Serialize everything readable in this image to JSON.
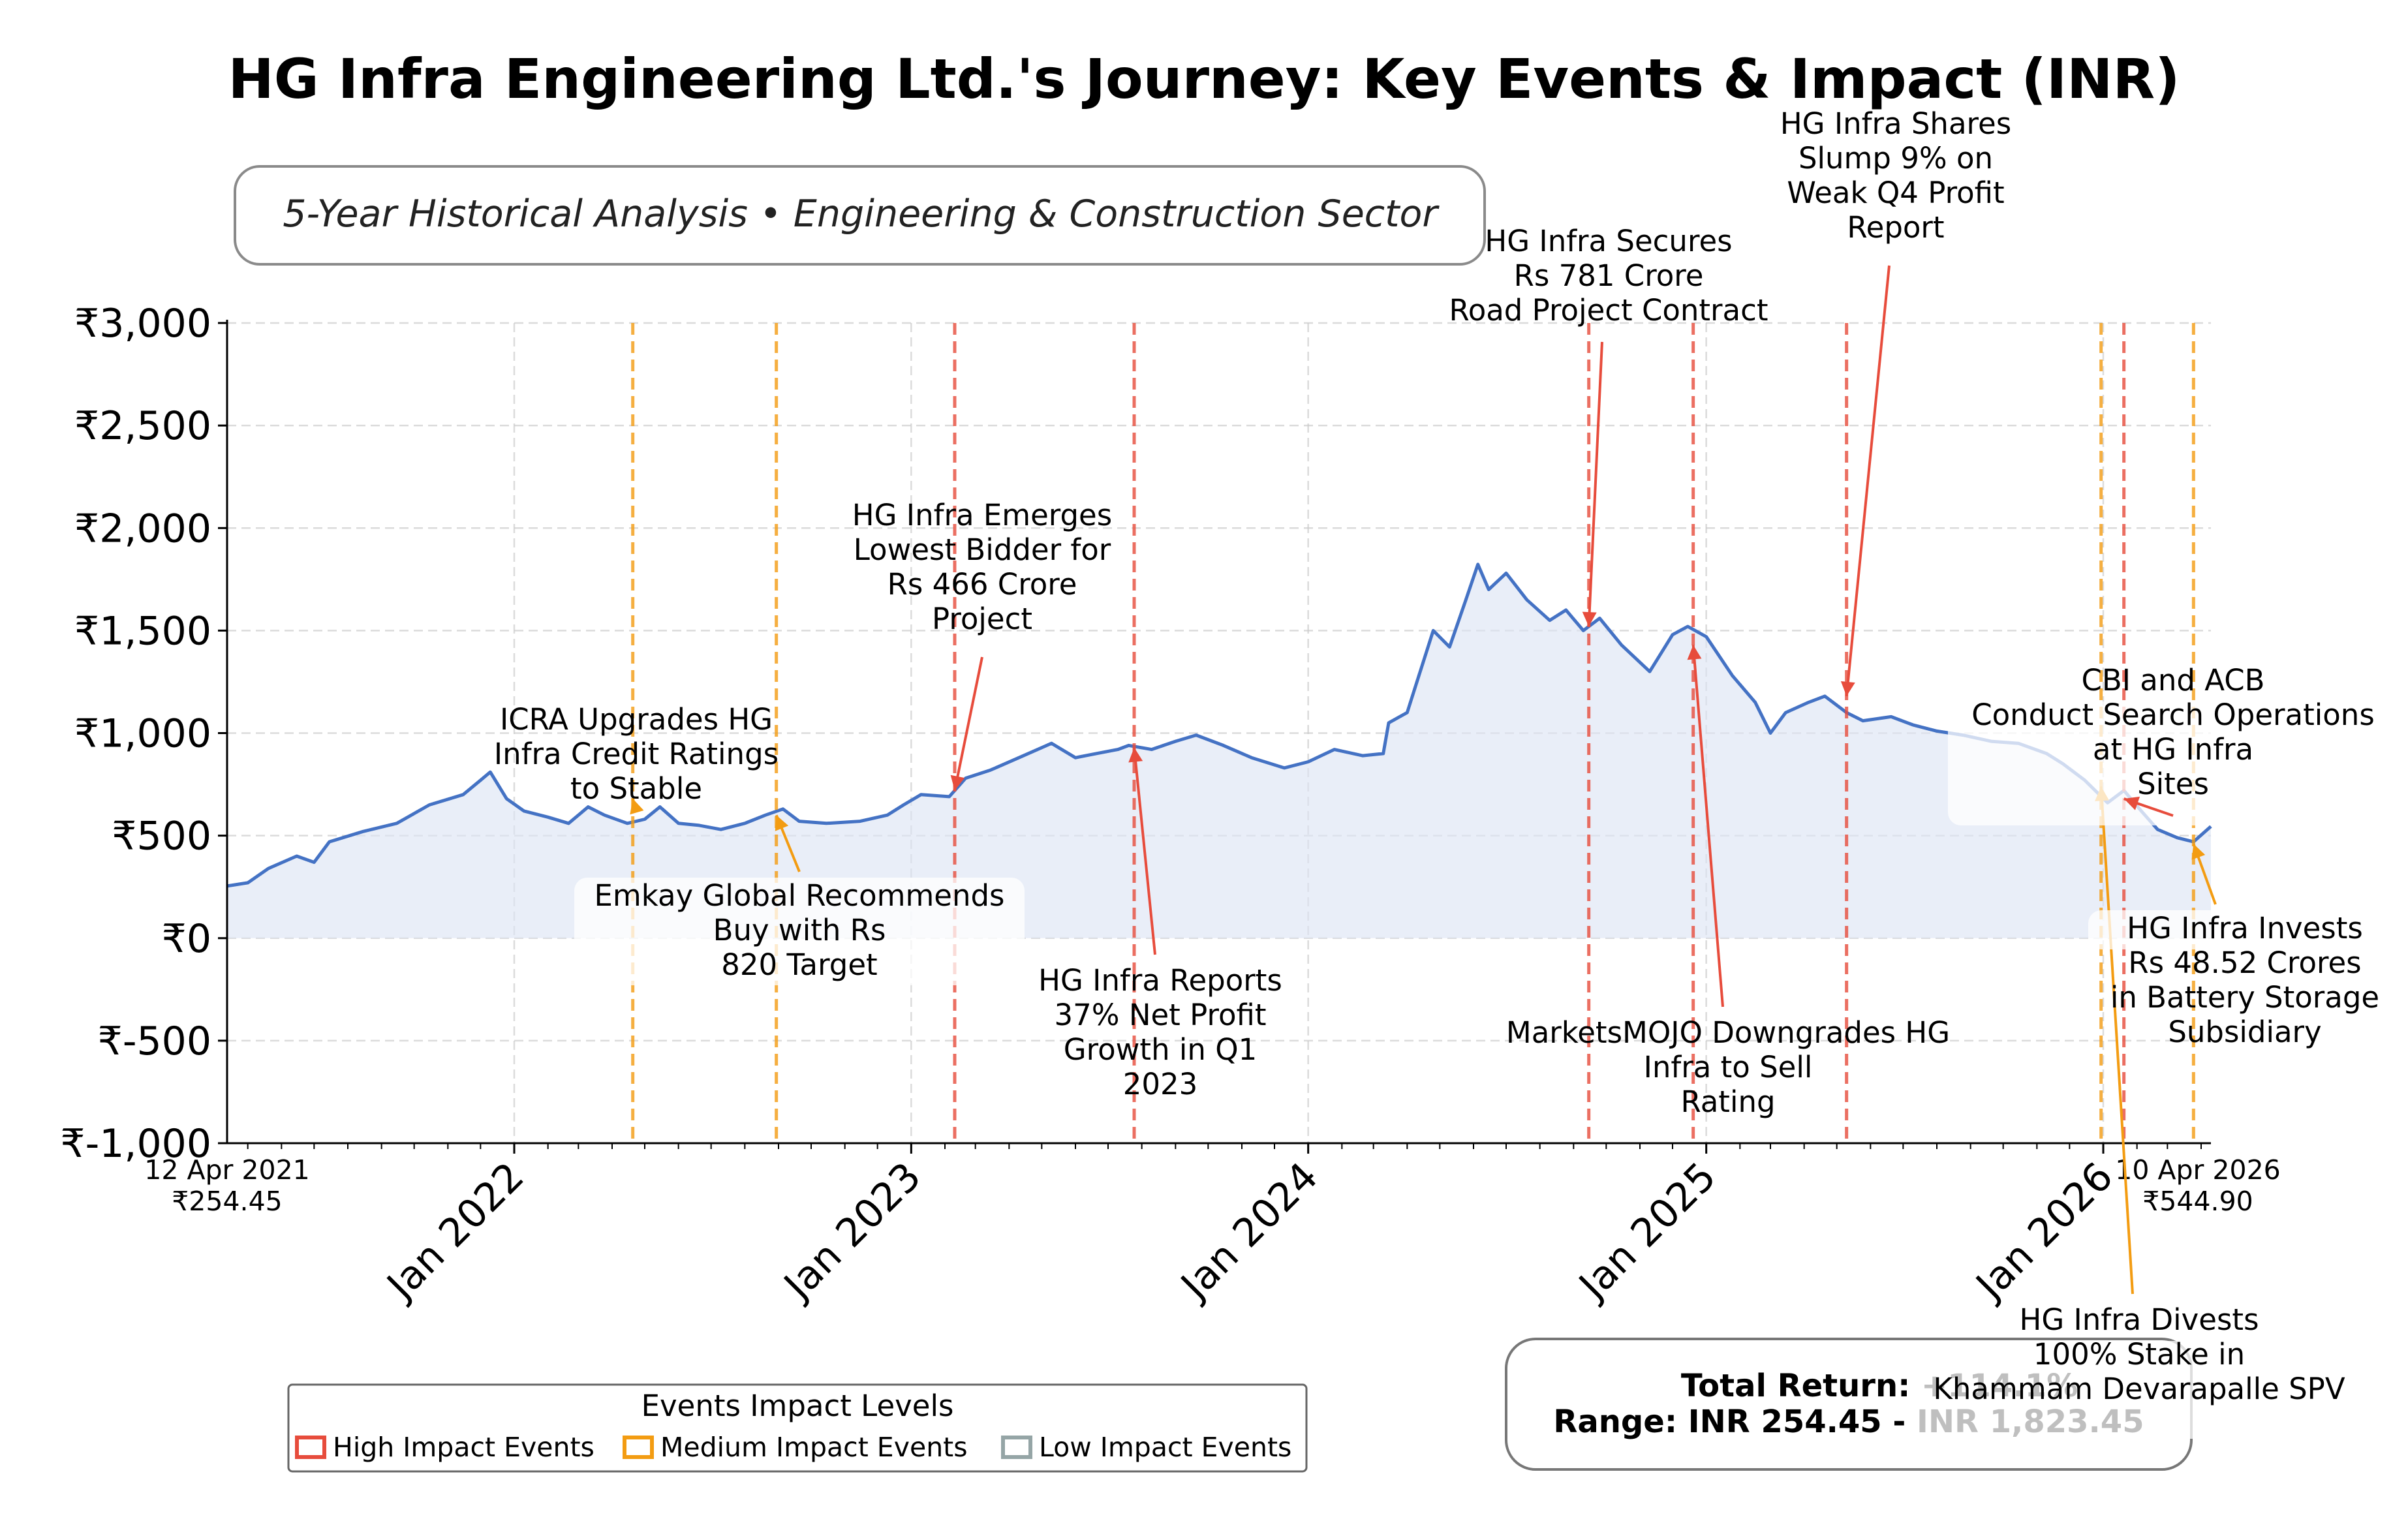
{
  "title": "HG Infra Engineering Ltd.'s Journey: Key Events & Impact (INR)",
  "subtitle": "5-Year Historical Analysis • Engineering & Construction Sector",
  "colors": {
    "line": "#4472c4",
    "fill": "#dde5f4",
    "high": "#e74c3c",
    "medium": "#f39c12",
    "low": "#95a5a6",
    "grid": "#cccccc"
  },
  "start_label": {
    "date": "12 Apr 2021",
    "price": "₹254.45"
  },
  "end_label": {
    "date": "10 Apr 2026",
    "price": "₹544.90"
  },
  "stats_box": {
    "line1": "Total Return: +114.1%",
    "line2": "Range: INR 254.45 - INR 1,823.45"
  },
  "legend": {
    "title": "Events Impact Levels",
    "items": [
      {
        "label": "High Impact Events",
        "level": "high"
      },
      {
        "label": "Medium Impact Events",
        "level": "medium"
      },
      {
        "label": "Low Impact Events",
        "level": "low"
      }
    ]
  },
  "chart_data": {
    "type": "line",
    "title": "HG Infra Engineering Ltd.'s Journey: Key Events & Impact (INR)",
    "xlabel": "",
    "ylabel": "",
    "ylim": [
      -1000,
      3000
    ],
    "xlim": [
      "2021-04-12",
      "2026-04-10"
    ],
    "y_ticks": [
      "₹-1,000",
      "₹-500",
      "₹0",
      "₹500",
      "₹1,000",
      "₹1,500",
      "₹2,000",
      "₹2,500",
      "₹3,000"
    ],
    "y_tick_values": [
      -1000,
      -500,
      0,
      500,
      1000,
      1500,
      2000,
      2500,
      3000
    ],
    "x_ticks": [
      {
        "date": "2022-01-01",
        "label": "Jan 2022"
      },
      {
        "date": "2023-01-01",
        "label": "Jan 2023"
      },
      {
        "date": "2024-01-01",
        "label": "Jan 2024"
      },
      {
        "date": "2025-01-01",
        "label": "Jan 2025"
      },
      {
        "date": "2026-01-01",
        "label": "Jan 2026"
      }
    ],
    "grid": true,
    "series": [
      {
        "points": [
          [
            "2021-04-12",
            254
          ],
          [
            "2021-05-01",
            270
          ],
          [
            "2021-05-20",
            340
          ],
          [
            "2021-06-15",
            400
          ],
          [
            "2021-07-01",
            370
          ],
          [
            "2021-07-15",
            470
          ],
          [
            "2021-08-15",
            520
          ],
          [
            "2021-09-15",
            560
          ],
          [
            "2021-10-15",
            650
          ],
          [
            "2021-11-15",
            700
          ],
          [
            "2021-12-01",
            770
          ],
          [
            "2021-12-10",
            810
          ],
          [
            "2021-12-25",
            680
          ],
          [
            "2022-01-10",
            620
          ],
          [
            "2022-02-01",
            590
          ],
          [
            "2022-02-20",
            560
          ],
          [
            "2022-03-10",
            640
          ],
          [
            "2022-03-25",
            600
          ],
          [
            "2022-04-15",
            560
          ],
          [
            "2022-05-01",
            580
          ],
          [
            "2022-05-15",
            640
          ],
          [
            "2022-06-01",
            560
          ],
          [
            "2022-06-20",
            550
          ],
          [
            "2022-07-10",
            530
          ],
          [
            "2022-08-01",
            560
          ],
          [
            "2022-08-20",
            600
          ],
          [
            "2022-09-05",
            630
          ],
          [
            "2022-09-20",
            570
          ],
          [
            "2022-10-15",
            560
          ],
          [
            "2022-11-15",
            570
          ],
          [
            "2022-12-10",
            600
          ],
          [
            "2022-12-25",
            650
          ],
          [
            "2023-01-10",
            700
          ],
          [
            "2023-02-05",
            690
          ],
          [
            "2023-02-20",
            780
          ],
          [
            "2023-03-15",
            820
          ],
          [
            "2023-04-10",
            880
          ],
          [
            "2023-05-10",
            950
          ],
          [
            "2023-06-01",
            880
          ],
          [
            "2023-06-20",
            900
          ],
          [
            "2023-07-10",
            920
          ],
          [
            "2023-07-20",
            940
          ],
          [
            "2023-08-10",
            920
          ],
          [
            "2023-09-01",
            960
          ],
          [
            "2023-09-20",
            990
          ],
          [
            "2023-10-15",
            940
          ],
          [
            "2023-11-10",
            880
          ],
          [
            "2023-12-10",
            830
          ],
          [
            "2024-01-01",
            860
          ],
          [
            "2024-01-25",
            920
          ],
          [
            "2024-02-20",
            890
          ],
          [
            "2024-03-10",
            900
          ],
          [
            "2024-03-15",
            1050
          ],
          [
            "2024-04-01",
            1100
          ],
          [
            "2024-04-10",
            1250
          ],
          [
            "2024-04-25",
            1500
          ],
          [
            "2024-05-10",
            1420
          ],
          [
            "2024-05-25",
            1650
          ],
          [
            "2024-06-05",
            1823
          ],
          [
            "2024-06-15",
            1700
          ],
          [
            "2024-07-01",
            1780
          ],
          [
            "2024-07-20",
            1650
          ],
          [
            "2024-08-10",
            1550
          ],
          [
            "2024-08-25",
            1600
          ],
          [
            "2024-09-10",
            1500
          ],
          [
            "2024-09-25",
            1560
          ],
          [
            "2024-10-15",
            1430
          ],
          [
            "2024-11-10",
            1300
          ],
          [
            "2024-12-01",
            1480
          ],
          [
            "2024-12-15",
            1520
          ],
          [
            "2025-01-01",
            1470
          ],
          [
            "2025-01-25",
            1280
          ],
          [
            "2025-02-15",
            1150
          ],
          [
            "2025-03-01",
            1000
          ],
          [
            "2025-03-15",
            1100
          ],
          [
            "2025-04-05",
            1150
          ],
          [
            "2025-04-20",
            1180
          ],
          [
            "2025-05-10",
            1100
          ],
          [
            "2025-05-25",
            1060
          ],
          [
            "2025-06-20",
            1080
          ],
          [
            "2025-07-10",
            1040
          ],
          [
            "2025-08-01",
            1010
          ],
          [
            "2025-08-25",
            990
          ],
          [
            "2025-09-20",
            960
          ],
          [
            "2025-10-15",
            950
          ],
          [
            "2025-11-10",
            900
          ],
          [
            "2025-11-25",
            850
          ],
          [
            "2025-12-15",
            770
          ],
          [
            "2026-01-05",
            660
          ],
          [
            "2026-01-20",
            720
          ],
          [
            "2026-02-05",
            620
          ],
          [
            "2026-02-20",
            530
          ],
          [
            "2026-03-10",
            490
          ],
          [
            "2026-03-25",
            470
          ],
          [
            "2026-04-10",
            545
          ]
        ]
      }
    ],
    "events": [
      {
        "date": "2022-04-20",
        "level": "medium",
        "price": 680,
        "label": [
          "ICRA Upgrades HG",
          "Infra Credit Ratings",
          "to Stable"
        ]
      },
      {
        "date": "2022-08-30",
        "level": "medium",
        "price": 600,
        "label": [
          "Emkay Global Recommends",
          "Buy with Rs",
          "820 Target"
        ]
      },
      {
        "date": "2023-02-10",
        "level": "high",
        "price": 720,
        "label": [
          "HG Infra Emerges",
          "Lowest Bidder for",
          "Rs 466 Crore",
          "Project"
        ]
      },
      {
        "date": "2023-07-25",
        "level": "high",
        "price": 930,
        "label": [
          "HG Infra Reports",
          "37% Net Profit",
          "Growth in Q1",
          "2023"
        ]
      },
      {
        "date": "2024-09-15",
        "level": "high",
        "price": 1520,
        "label": [
          "HG Infra Secures",
          "Rs 781 Crore",
          "Road Project Contract"
        ]
      },
      {
        "date": "2024-12-20",
        "level": "high",
        "price": 1430,
        "label": [
          "MarketsMOJO Downgrades HG",
          "Infra to Sell",
          "Rating"
        ]
      },
      {
        "date": "2025-05-10",
        "level": "high",
        "price": 1180,
        "label": [
          "HG Infra Shares",
          "Slump 9% on",
          "Weak Q4 Profit",
          "Report"
        ]
      },
      {
        "date": "2025-12-30",
        "level": "medium",
        "price": 740,
        "label": [
          "HG Infra Divests",
          "100% Stake in",
          "Khammam Devarapalle SPV"
        ]
      },
      {
        "date": "2026-01-20",
        "level": "high",
        "price": 680,
        "label": [
          "CBI and ACB",
          "Conduct Search Operations",
          "at HG Infra",
          "Sites"
        ]
      },
      {
        "date": "2026-03-25",
        "level": "medium",
        "price": 460,
        "label": [
          "HG Infra Invests",
          "Rs 48.52 Crores",
          "in Battery Storage",
          "Subsidiary"
        ]
      }
    ]
  }
}
